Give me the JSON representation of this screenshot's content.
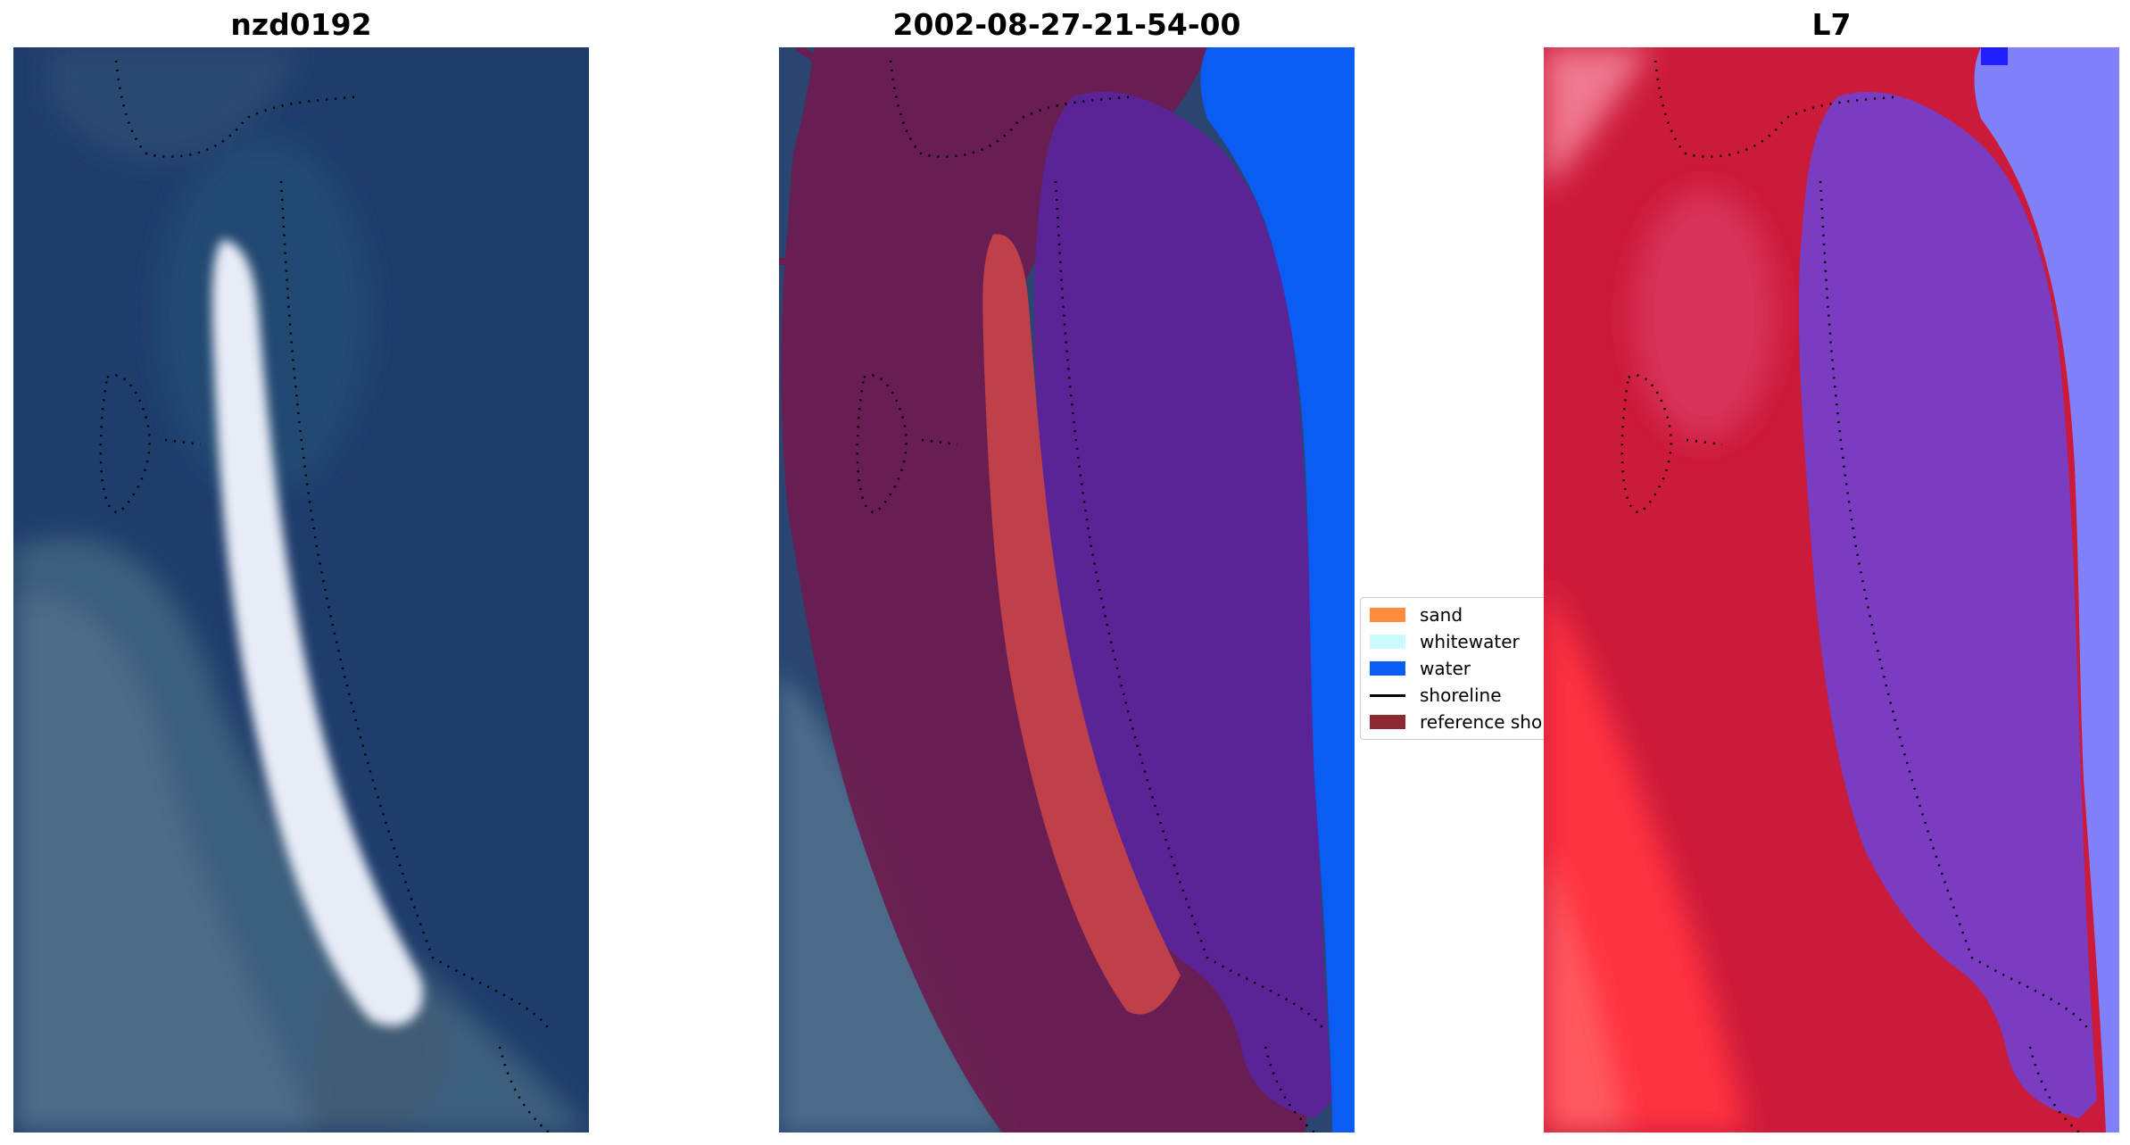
{
  "panels": {
    "rgb_title": "nzd0192",
    "classified_title": "2002-08-27-21-54-00",
    "index_title": "L7"
  },
  "legend": {
    "items": [
      {
        "label": "sand",
        "color": "#ff8c3a",
        "kind": "patch"
      },
      {
        "label": "whitewater",
        "color": "#c9fbfb",
        "kind": "patch"
      },
      {
        "label": "water",
        "color": "#0a5cf5",
        "kind": "patch"
      },
      {
        "label": "shoreline",
        "color": "#000000",
        "kind": "line"
      },
      {
        "label": "reference sho",
        "color": "#8c2a33",
        "kind": "patch"
      }
    ]
  },
  "colors": {
    "ocean": "#1e3d6e",
    "land_overlay": "#6b1a4f",
    "sand_class": "#c0404a",
    "water_class": "#5a2496",
    "water_blue": "#0a5cf5",
    "index_high": "#ff1e2a",
    "index_low": "#7a3cc0"
  }
}
